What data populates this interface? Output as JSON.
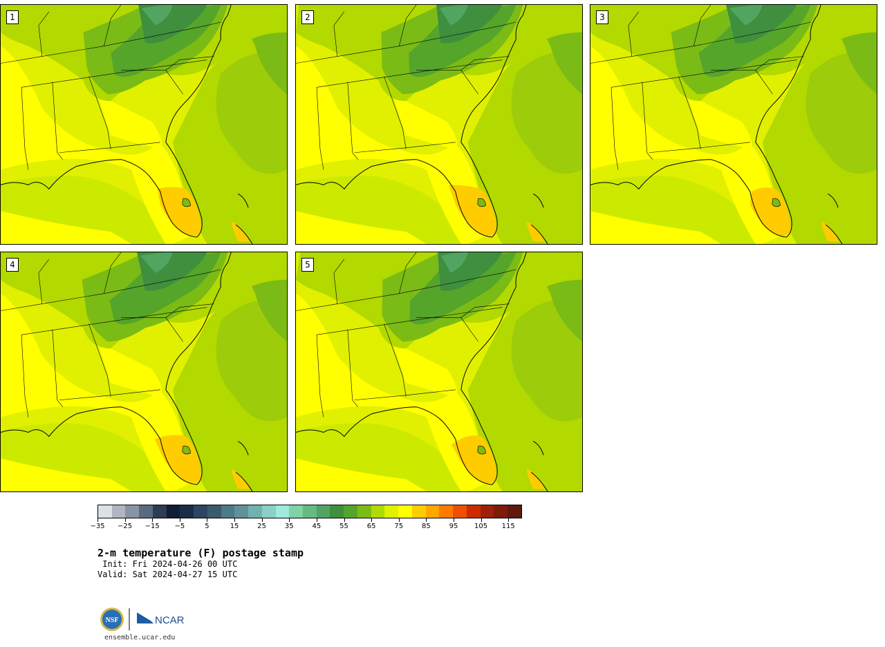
{
  "title": "2-m temperature (F) postage stamp",
  "init": " Init: Fri 2024-04-26 00 UTC",
  "valid": "Valid: Sat 2024-04-27 15 UTC",
  "url": "ensemble.ucar.edu",
  "members": [
    "1",
    "2",
    "3",
    "4",
    "5"
  ],
  "colorbar": {
    "ticks": [
      "−35",
      "−25",
      "−15",
      "−5",
      "5",
      "15",
      "25",
      "35",
      "45",
      "55",
      "65",
      "75",
      "85",
      "95",
      "105",
      "115"
    ],
    "colors": [
      "#dce0e8",
      "#aeb6c4",
      "#8a93a3",
      "#5a6b80",
      "#2f3c55",
      "#121c34",
      "#1c2c48",
      "#2b4660",
      "#3a5a70",
      "#4d7a88",
      "#5e919b",
      "#73b0b0",
      "#8ccfc6",
      "#9eeadb",
      "#7fd3a4",
      "#66bb80",
      "#52a560",
      "#3f8f3e",
      "#55a52a",
      "#7bbb16",
      "#b2d900",
      "#e0f000",
      "#ffff00",
      "#ffcc00",
      "#ffa600",
      "#ff7b00",
      "#f24e00",
      "#cc2a00",
      "#a01f0a",
      "#801a0a",
      "#5e1a0c"
    ]
  },
  "logos": {
    "nsf": "NSF",
    "ncar": "NCAR"
  }
}
